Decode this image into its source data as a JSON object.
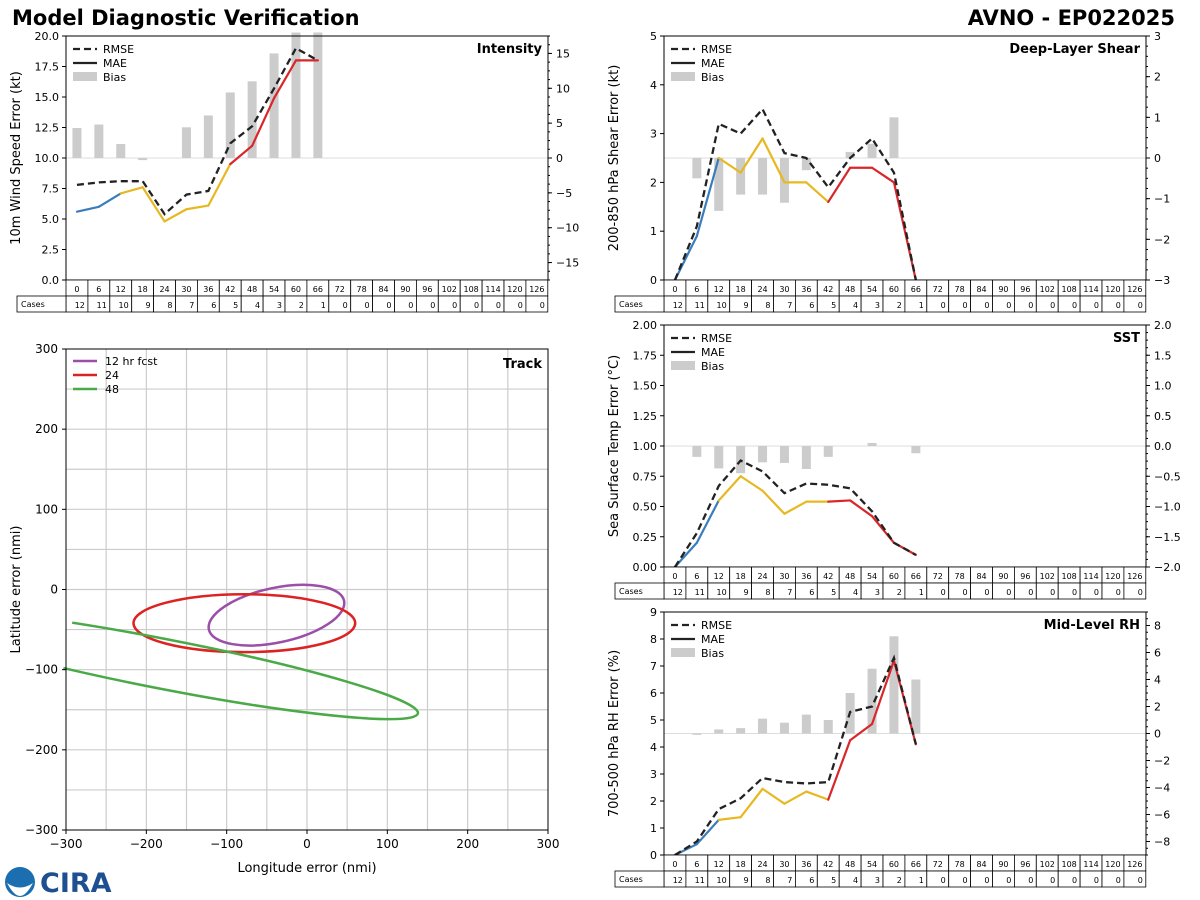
{
  "header": {
    "title_left": "Model Diagnostic Verification",
    "title_right": "AVNO - EP022025"
  },
  "legend": {
    "rmse": "RMSE",
    "mae": "MAE",
    "bias": "Bias"
  },
  "cases_label": "Cases",
  "logo_text": "CIRA",
  "colors": {
    "rmse": "#222222",
    "early": "#3a7dbd",
    "mid": "#e8b820",
    "late": "#d9262a",
    "bias": "#cccccc",
    "track12": "#9b4fa8",
    "track24": "#dd2222",
    "track48": "#4aaa48",
    "grid": "#cccccc"
  },
  "hours": [
    0,
    6,
    12,
    18,
    24,
    30,
    36,
    42,
    48,
    54,
    60,
    66,
    72,
    78,
    84,
    90,
    96,
    102,
    108,
    114,
    120,
    126
  ],
  "cases": [
    12,
    11,
    10,
    9,
    8,
    7,
    6,
    5,
    4,
    3,
    2,
    1,
    0,
    0,
    0,
    0,
    0,
    0,
    0,
    0,
    0,
    0
  ],
  "chart_data": [
    {
      "id": "intensity",
      "type": "line",
      "title": "Intensity",
      "ylabel": "10m Wind Speed Error (kt)",
      "ylim": [
        0,
        20
      ],
      "yticks": [
        0,
        2.5,
        5,
        7.5,
        10,
        12.5,
        15,
        17.5,
        20
      ],
      "ytick_labels": [
        "0.0",
        "2.5",
        "5.0",
        "7.5",
        "10.0",
        "12.5",
        "15.0",
        "17.5",
        "20.0"
      ],
      "y2lim": [
        -17.5,
        17.5
      ],
      "y2ticks": [
        -15,
        -10,
        -5,
        0,
        5,
        10,
        15
      ],
      "y2tick_labels": [
        "−15",
        "−10",
        "−5",
        "0",
        "5",
        "10",
        "15"
      ],
      "rmse": [
        7.8,
        8.0,
        8.1,
        8.1,
        5.4,
        7.0,
        7.3,
        11.2,
        12.6,
        15.7,
        19.0,
        18.0
      ],
      "mae": [
        5.6,
        6.0,
        7.1,
        7.6,
        4.8,
        5.8,
        6.1,
        9.5,
        11.0,
        14.9,
        18.0,
        18.0
      ],
      "bias": [
        4.3,
        4.8,
        2.0,
        -0.3,
        0.0,
        4.4,
        6.1,
        9.4,
        11.0,
        15.0,
        18.0,
        18.0
      ],
      "ymap": "dual"
    },
    {
      "id": "shear",
      "type": "line",
      "title": "Deep-Layer Shear",
      "ylabel": "200-850 hPa Shear Error (kt)",
      "ylim": [
        0,
        5
      ],
      "yticks": [
        0,
        1,
        2,
        3,
        4,
        5
      ],
      "ytick_labels": [
        "0",
        "1",
        "2",
        "3",
        "4",
        "5"
      ],
      "y2lim": [
        -3,
        3
      ],
      "y2ticks": [
        -3,
        -2,
        -1,
        0,
        1,
        2,
        3
      ],
      "y2tick_labels": [
        "−3",
        "−2",
        "−1",
        "0",
        "1",
        "2",
        "3"
      ],
      "rmse": [
        0.0,
        1.1,
        3.2,
        3.0,
        3.5,
        2.6,
        2.5,
        1.9,
        2.5,
        2.9,
        2.2,
        0.0
      ],
      "mae": [
        0.0,
        0.9,
        2.5,
        2.2,
        2.9,
        2.0,
        2.0,
        1.6,
        2.3,
        2.3,
        2.0,
        0.0
      ],
      "bias": [
        0.0,
        -0.5,
        -1.3,
        -0.9,
        -0.9,
        -1.1,
        -0.3,
        0.0,
        0.15,
        0.35,
        1.0,
        0.0
      ],
      "ymap": "dual"
    },
    {
      "id": "sst",
      "type": "line",
      "title": "SST",
      "ylabel": "Sea Surface Temp Error (°C)",
      "ylim": [
        0,
        2
      ],
      "yticks": [
        0,
        0.25,
        0.5,
        0.75,
        1,
        1.25,
        1.5,
        1.75,
        2
      ],
      "ytick_labels": [
        "0.00",
        "0.25",
        "0.50",
        "0.75",
        "1.00",
        "1.25",
        "1.50",
        "1.75",
        "2.00"
      ],
      "y2lim": [
        -2,
        2
      ],
      "y2ticks": [
        -2,
        -1.5,
        -1,
        -0.5,
        0,
        0.5,
        1,
        1.5,
        2
      ],
      "y2tick_labels": [
        "−2.0",
        "−1.5",
        "−1.0",
        "−0.5",
        "0.0",
        "0.5",
        "1.0",
        "1.5",
        "2.0"
      ],
      "rmse": [
        0.0,
        0.28,
        0.67,
        0.88,
        0.79,
        0.61,
        0.69,
        0.68,
        0.65,
        0.46,
        0.2,
        0.1
      ],
      "mae": [
        0.0,
        0.2,
        0.55,
        0.75,
        0.63,
        0.44,
        0.54,
        0.54,
        0.55,
        0.42,
        0.2,
        0.1
      ],
      "bias": [
        0.0,
        -0.18,
        -0.37,
        -0.45,
        -0.27,
        -0.28,
        -0.38,
        -0.18,
        0.0,
        0.05,
        0.0,
        -0.12
      ],
      "ymap": "dual"
    },
    {
      "id": "rh",
      "type": "line",
      "title": "Mid-Level RH",
      "ylabel": "700-500 hPa RH Error (%)",
      "ylim": [
        0,
        9
      ],
      "yticks": [
        0,
        1,
        2,
        3,
        4,
        5,
        6,
        7,
        8,
        9
      ],
      "ytick_labels": [
        "0",
        "1",
        "2",
        "3",
        "4",
        "5",
        "6",
        "7",
        "8",
        "9"
      ],
      "y2lim": [
        -9,
        9
      ],
      "y2ticks": [
        -8,
        -6,
        -4,
        -2,
        0,
        2,
        4,
        6,
        8
      ],
      "y2tick_labels": [
        "−8",
        "−6",
        "−4",
        "−2",
        "0",
        "2",
        "4",
        "6",
        "8"
      ],
      "rmse": [
        0.0,
        0.5,
        1.7,
        2.1,
        2.85,
        2.7,
        2.65,
        2.7,
        5.3,
        5.5,
        7.3,
        4.1
      ],
      "mae": [
        0.0,
        0.4,
        1.3,
        1.4,
        2.45,
        1.9,
        2.35,
        2.05,
        4.25,
        4.85,
        7.2,
        4.1
      ],
      "bias": [
        0.0,
        -0.1,
        0.3,
        0.4,
        1.1,
        0.8,
        1.4,
        1.0,
        3.0,
        4.8,
        7.2,
        4.0
      ],
      "ymap": "dual"
    },
    {
      "id": "track",
      "type": "ellipse",
      "title": "Track",
      "xlabel": "Longitude error (nmi)",
      "ylabel": "Latitude error (nmi)",
      "xlim": [
        -300,
        300
      ],
      "ylim": [
        -300,
        300
      ],
      "ticks": [
        -300,
        -200,
        -100,
        0,
        100,
        200,
        300
      ],
      "tick_labels": [
        "−300",
        "−200",
        "−100",
        "0",
        "100",
        "200",
        "300"
      ],
      "legend": [
        "12 hr fcst",
        "24",
        "48"
      ],
      "ellipses": [
        {
          "name": "12 hr fcst",
          "cx": -38,
          "cy": -32,
          "rx": 86,
          "ry": 34,
          "angle": -12
        },
        {
          "name": "24",
          "cx": -78,
          "cy": -42,
          "rx": 138,
          "ry": 36,
          "angle": 0
        },
        {
          "name": "48",
          "cx": -178,
          "cy": -93,
          "rx": 322,
          "ry": 31,
          "angle": 11
        }
      ]
    }
  ]
}
